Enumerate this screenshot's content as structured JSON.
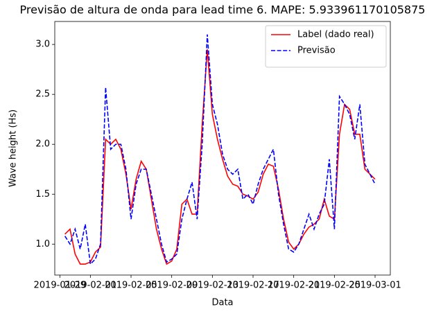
{
  "chart_data": {
    "type": "line",
    "title": "Previsão de altura de onda para lead time 6. MAPE: 5.933961170105875",
    "xlabel": "Data",
    "ylabel": "Wave height (Hs)",
    "x": [
      "2019-01-29T12:00",
      "2019-01-30T00:00",
      "2019-01-30T12:00",
      "2019-01-31T00:00",
      "2019-01-31T12:00",
      "2019-02-01T00:00",
      "2019-02-01T12:00",
      "2019-02-02T00:00",
      "2019-02-02T12:00",
      "2019-02-03T00:00",
      "2019-02-03T12:00",
      "2019-02-04T00:00",
      "2019-02-04T12:00",
      "2019-02-05T00:00",
      "2019-02-05T12:00",
      "2019-02-06T00:00",
      "2019-02-06T12:00",
      "2019-02-07T00:00",
      "2019-02-07T12:00",
      "2019-02-08T00:00",
      "2019-02-08T12:00",
      "2019-02-09T00:00",
      "2019-02-09T12:00",
      "2019-02-10T00:00",
      "2019-02-10T12:00",
      "2019-02-11T00:00",
      "2019-02-11T12:00",
      "2019-02-12T00:00",
      "2019-02-12T12:00",
      "2019-02-13T00:00",
      "2019-02-13T12:00",
      "2019-02-14T00:00",
      "2019-02-14T12:00",
      "2019-02-15T00:00",
      "2019-02-15T12:00",
      "2019-02-16T00:00",
      "2019-02-16T12:00",
      "2019-02-17T00:00",
      "2019-02-17T12:00",
      "2019-02-18T00:00",
      "2019-02-18T12:00",
      "2019-02-19T00:00",
      "2019-02-19T12:00",
      "2019-02-20T00:00",
      "2019-02-20T12:00",
      "2019-02-21T00:00",
      "2019-02-21T12:00",
      "2019-02-22T00:00",
      "2019-02-22T12:00",
      "2019-02-23T00:00",
      "2019-02-23T12:00",
      "2019-02-24T00:00",
      "2019-02-24T12:00",
      "2019-02-25T00:00",
      "2019-02-25T12:00",
      "2019-02-26T00:00",
      "2019-02-26T12:00",
      "2019-02-27T00:00",
      "2019-02-27T12:00",
      "2019-02-28T00:00",
      "2019-02-28T12:00",
      "2019-03-01T00:00"
    ],
    "series": [
      {
        "name": "Label (dado real)",
        "color": "#ff0000",
        "dash": false,
        "values": [
          1.1,
          1.15,
          0.9,
          0.8,
          0.8,
          0.82,
          0.92,
          0.97,
          2.05,
          2.0,
          2.05,
          1.95,
          1.7,
          1.35,
          1.65,
          1.83,
          1.75,
          1.45,
          1.15,
          0.95,
          0.8,
          0.83,
          0.95,
          1.4,
          1.45,
          1.3,
          1.3,
          2.2,
          2.95,
          2.3,
          2.05,
          1.85,
          1.68,
          1.6,
          1.58,
          1.5,
          1.48,
          1.45,
          1.52,
          1.7,
          1.8,
          1.78,
          1.55,
          1.25,
          1.02,
          0.95,
          1.0,
          1.1,
          1.17,
          1.2,
          1.25,
          1.45,
          1.28,
          1.25,
          2.1,
          2.4,
          2.35,
          2.1,
          2.1,
          1.75,
          1.7,
          1.65
        ]
      },
      {
        "name": "Previsão",
        "color": "#0000ff",
        "dash": true,
        "values": [
          1.08,
          1.0,
          1.15,
          0.95,
          1.2,
          0.8,
          0.85,
          1.0,
          2.57,
          1.95,
          2.0,
          2.0,
          1.75,
          1.25,
          1.6,
          1.75,
          1.75,
          1.5,
          1.25,
          1.0,
          0.82,
          0.85,
          0.9,
          1.25,
          1.45,
          1.62,
          1.25,
          2.0,
          3.1,
          2.4,
          2.2,
          1.9,
          1.75,
          1.7,
          1.75,
          1.45,
          1.5,
          1.4,
          1.6,
          1.75,
          1.85,
          1.95,
          1.5,
          1.2,
          0.95,
          0.92,
          1.0,
          1.15,
          1.3,
          1.15,
          1.3,
          1.4,
          1.85,
          1.15,
          2.48,
          2.4,
          2.3,
          2.05,
          2.4,
          1.8,
          1.7,
          1.6
        ]
      }
    ],
    "xlim": [
      "2019-01-28T12:00",
      "2019-03-02T12:00"
    ],
    "xticks": [
      "2019-01-29",
      "2019-02-01",
      "2019-02-05",
      "2019-02-09",
      "2019-02-13",
      "2019-02-17",
      "2019-02-21",
      "2019-02-25",
      "2019-03-01"
    ],
    "ylim": [
      0.69,
      3.23
    ],
    "yticks": [
      {
        "value": 1,
        "label": "1.0"
      },
      {
        "value": 1.5,
        "label": "1.5"
      },
      {
        "value": 2,
        "label": "2.0"
      },
      {
        "value": 2.5,
        "label": "2.5"
      },
      {
        "value": 3,
        "label": "3.0"
      }
    ],
    "grid": false,
    "legend": "upper right"
  }
}
